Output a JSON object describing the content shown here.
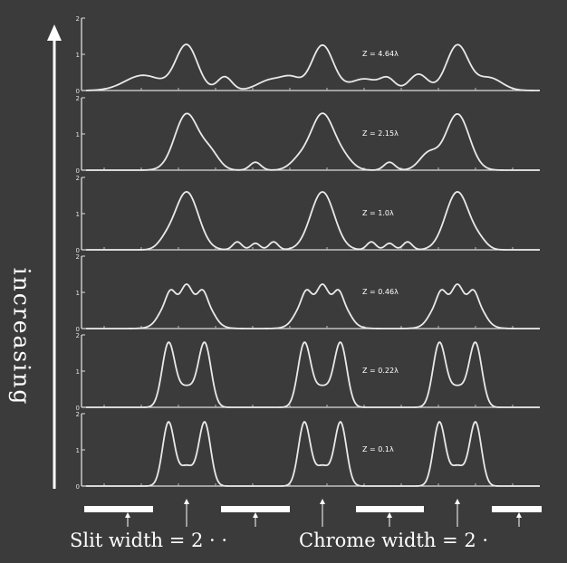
{
  "side_label": "increasing",
  "captions": {
    "slit": "Slit width = 2 · ·",
    "chrome": "Chrome  width = 2 ·"
  },
  "panels": [
    {
      "label": "Z = 4.64λ",
      "ticks": [
        "2",
        "1",
        "0"
      ]
    },
    {
      "label": "Z = 2.15λ",
      "ticks": [
        "2",
        "1",
        "0"
      ]
    },
    {
      "label": "Z = 1.0λ",
      "ticks": [
        "2",
        "1",
        "0"
      ]
    },
    {
      "label": "Z = 0.46λ",
      "ticks": [
        "2",
        "1",
        "0"
      ]
    },
    {
      "label": "Z = 0.22λ",
      "ticks": [
        "2",
        "1",
        "0"
      ]
    },
    {
      "label": "Z = 0.1λ",
      "ticks": [
        "2",
        "1",
        "0"
      ]
    }
  ],
  "colors": {
    "background": "#3b3b3b",
    "foreground": "#ffffff",
    "curve": "#e9e9e9"
  }
}
